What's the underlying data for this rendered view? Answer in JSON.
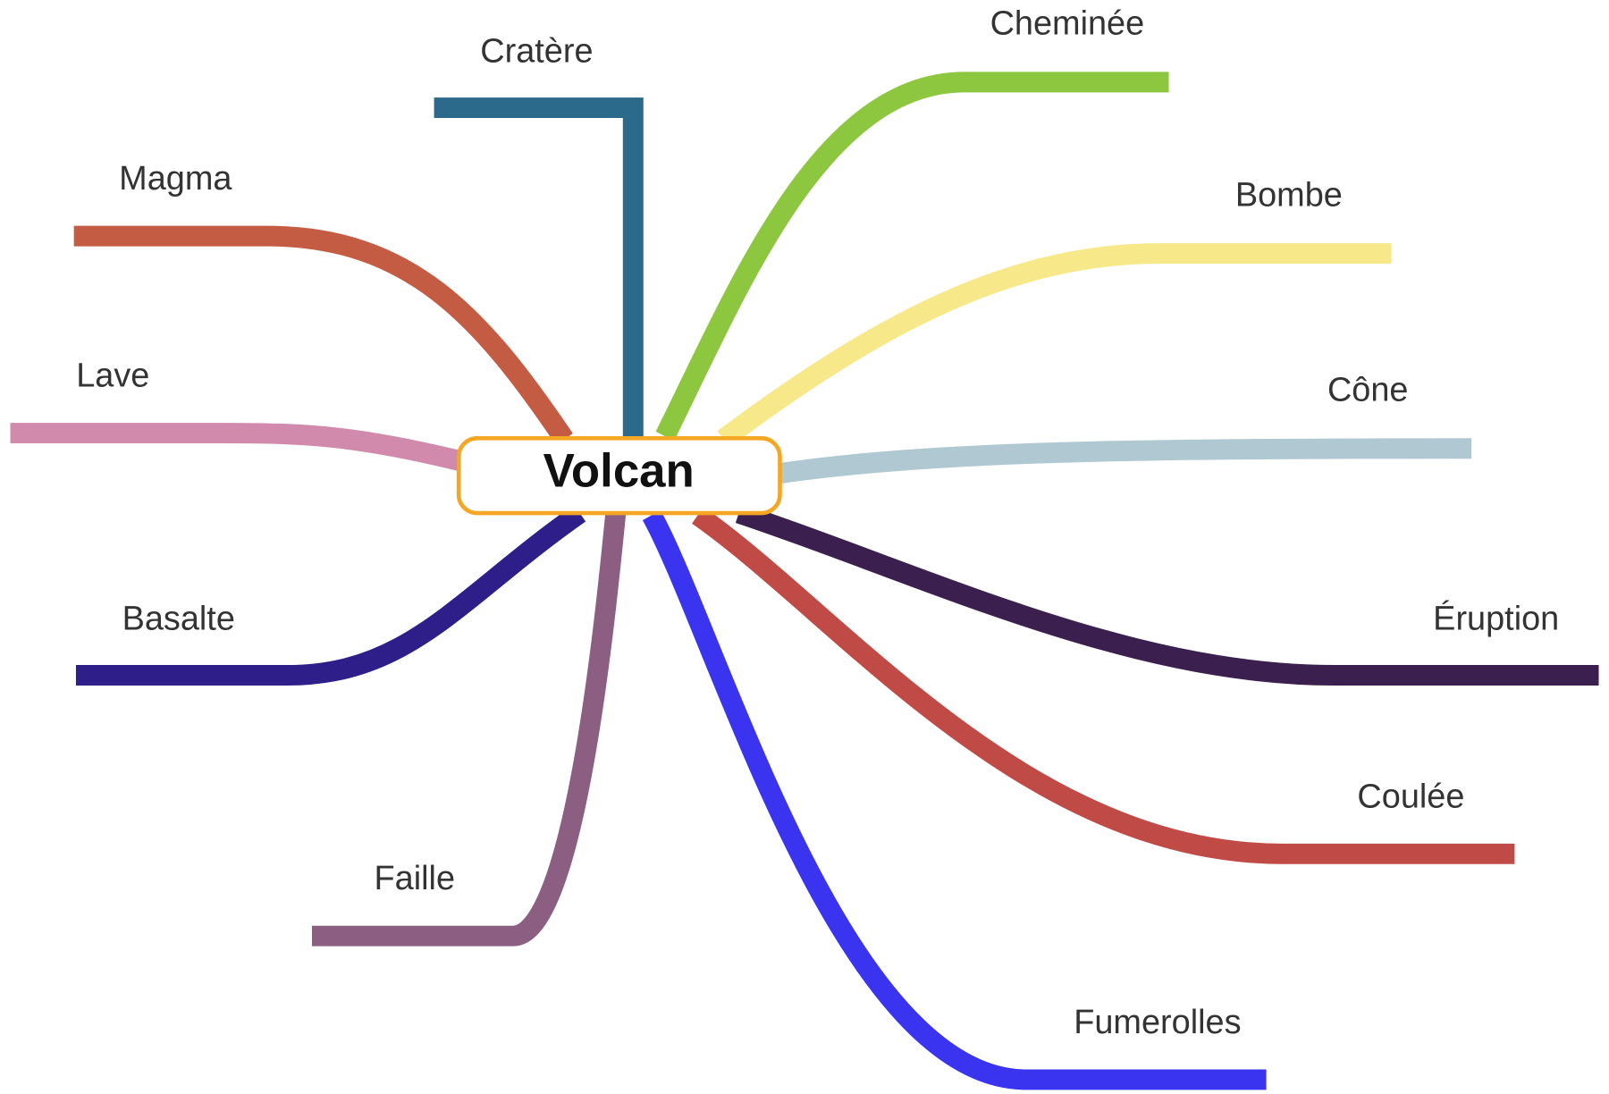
{
  "center": {
    "label": "Volcan"
  },
  "branches": [
    {
      "label": "Cratère"
    },
    {
      "label": "Cheminée"
    },
    {
      "label": "Bombe"
    },
    {
      "label": "Cône"
    },
    {
      "label": "Éruption"
    },
    {
      "label": "Coulée"
    },
    {
      "label": "Fumerolles"
    },
    {
      "label": "Faille"
    },
    {
      "label": "Basalte"
    },
    {
      "label": "Lave"
    },
    {
      "label": "Magma"
    }
  ]
}
